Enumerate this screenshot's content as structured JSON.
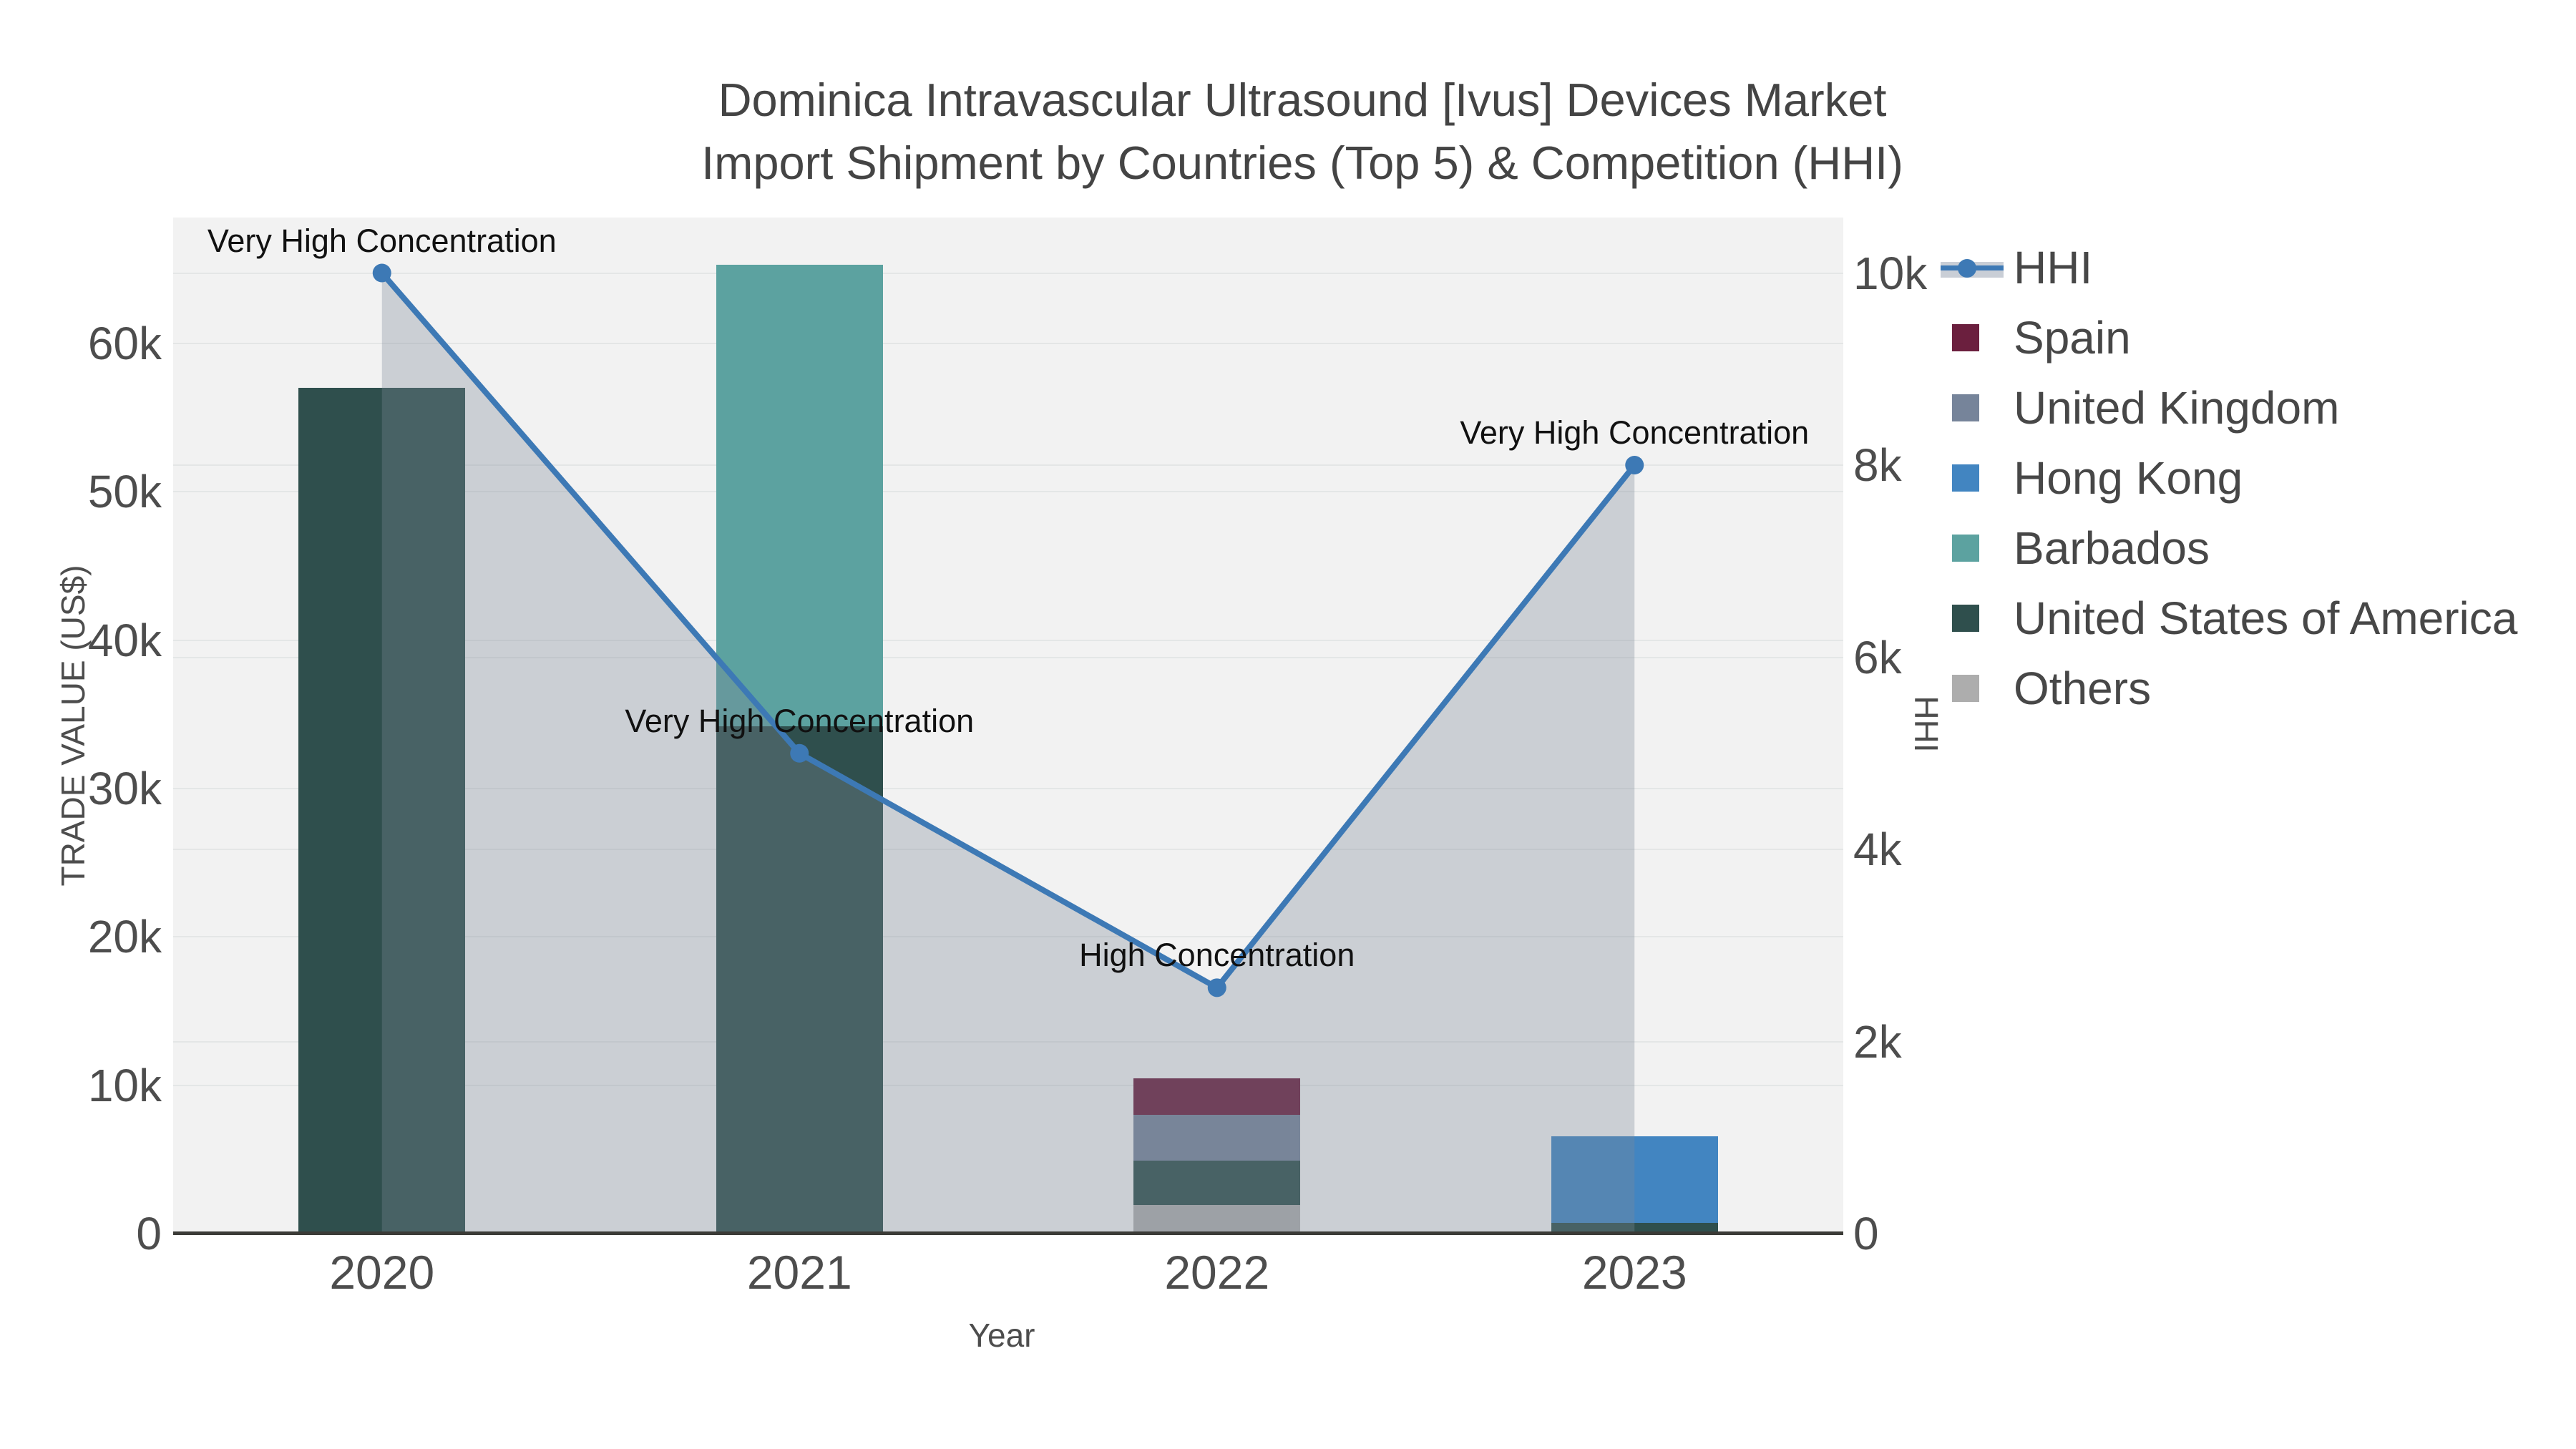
{
  "title": {
    "line1": "Dominica Intravascular Ultrasound [Ivus] Devices Market",
    "line2": "Import Shipment by Countries (Top 5) & Competition (HHI)"
  },
  "axes": {
    "left": {
      "title": "TRADE VALUE (US$)",
      "ticks": [
        {
          "value": 0,
          "label": "0"
        },
        {
          "value": 10000,
          "label": "10k"
        },
        {
          "value": 20000,
          "label": "20k"
        },
        {
          "value": 30000,
          "label": "30k"
        },
        {
          "value": 40000,
          "label": "40k"
        },
        {
          "value": 50000,
          "label": "50k"
        },
        {
          "value": 60000,
          "label": "60k"
        }
      ]
    },
    "right": {
      "title": "HHI",
      "ticks": [
        {
          "value": 0,
          "label": "0"
        },
        {
          "value": 2000,
          "label": "2k"
        },
        {
          "value": 4000,
          "label": "4k"
        },
        {
          "value": 6000,
          "label": "6k"
        },
        {
          "value": 8000,
          "label": "8k"
        },
        {
          "value": 10000,
          "label": "10k"
        }
      ]
    },
    "x": {
      "title": "Year"
    }
  },
  "legend": {
    "items": [
      {
        "key": "hhi",
        "label": "HHI",
        "type": "line"
      },
      {
        "key": "Spain",
        "label": "Spain",
        "type": "swatch"
      },
      {
        "key": "United Kingdom",
        "label": "United Kingdom",
        "type": "swatch"
      },
      {
        "key": "Hong Kong",
        "label": "Hong Kong",
        "type": "swatch"
      },
      {
        "key": "Barbados",
        "label": "Barbados",
        "type": "swatch"
      },
      {
        "key": "United States of America",
        "label": "United States of America",
        "type": "swatch"
      },
      {
        "key": "Others",
        "label": "Others",
        "type": "swatch"
      }
    ]
  },
  "colors": {
    "countries": {
      "Spain": "#6b1f3e",
      "United Kingdom": "#76849a",
      "Hong Kong": "#4285c1",
      "Barbados": "#5ca2a0",
      "United States of America": "#2f4f4d",
      "Others": "#adadad"
    },
    "hhi_line": "#3d79b5",
    "hhi_fill": "rgba(125,138,152,0.33)",
    "plot_bg": "#f2f2f2",
    "grid": "#e4e6e6",
    "axis_line": "#3b3b37",
    "tick_text": "#4d4d4d",
    "annotation_text": "#111111"
  },
  "chart_data": {
    "type": "combo: stacked bar (trade value, left axis) + line (HHI, right axis)",
    "title": "Dominica Intravascular Ultrasound [Ivus] Devices Market Import Shipment by Countries (Top 5) & Competition (HHI)",
    "categories": [
      "2020",
      "2021",
      "2022",
      "2023"
    ],
    "xlabel": "Year",
    "ylabel_left": "TRADE VALUE (US$)",
    "ylabel_right": "HHI",
    "ylim_left": [
      0,
      68500
    ],
    "ylim_right": [
      0,
      10240
    ],
    "grid": true,
    "legend_position": "right",
    "bar_stacks": [
      [
        {
          "country": "United States of America",
          "value": 57000
        }
      ],
      [
        {
          "country": "United States of America",
          "value": 34200
        },
        {
          "country": "Barbados",
          "value": 31100
        }
      ],
      [
        {
          "country": "Others",
          "value": 1950
        },
        {
          "country": "United States of America",
          "value": 2950
        },
        {
          "country": "United Kingdom",
          "value": 3100
        },
        {
          "country": "Spain",
          "value": 2470
        }
      ],
      [
        {
          "country": "United States of America",
          "value": 700
        },
        {
          "country": "Hong Kong",
          "value": 5850
        }
      ]
    ],
    "series": [
      {
        "name": "HHI",
        "type": "line+area",
        "axis": "right",
        "values": [
          10000,
          5000,
          2560,
          8000
        ]
      }
    ],
    "annotations": [
      {
        "category": "2020",
        "text": "Very High Concentration"
      },
      {
        "category": "2021",
        "text": "Very High Concentration"
      },
      {
        "category": "2022",
        "text": "High Concentration"
      },
      {
        "category": "2023",
        "text": "Very High Concentration"
      }
    ]
  }
}
